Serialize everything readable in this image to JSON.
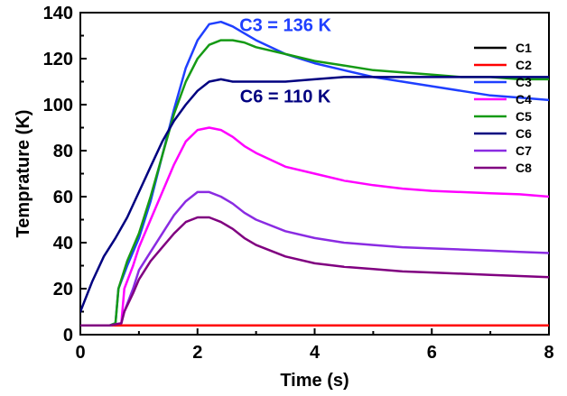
{
  "chart_data": {
    "type": "line",
    "title": "",
    "xlabel": "Time (s)",
    "ylabel": "Temprature (K)",
    "xlim": [
      0,
      8
    ],
    "ylim": [
      0,
      140
    ],
    "xticks": [
      "0",
      "2",
      "4",
      "6",
      "8"
    ],
    "yticks": [
      "0",
      "20",
      "40",
      "60",
      "80",
      "100",
      "120",
      "140"
    ],
    "grid": false,
    "legend_position": "right",
    "series": [
      {
        "name": "C1",
        "color": "#000000",
        "x": [
          0,
          0.5,
          1,
          2,
          3,
          4,
          5,
          6,
          7,
          8
        ],
        "y": [
          4,
          4,
          4,
          4,
          4,
          4,
          4,
          4,
          4,
          4
        ]
      },
      {
        "name": "C2",
        "color": "#ff0000",
        "x": [
          0,
          0.5,
          1,
          2,
          3,
          4,
          5,
          6,
          7,
          8
        ],
        "y": [
          4,
          4,
          4,
          4,
          4,
          4,
          4,
          4,
          4,
          4
        ]
      },
      {
        "name": "C3",
        "color": "#1f3fff",
        "x": [
          0,
          0.5,
          0.6,
          0.65,
          0.8,
          1.0,
          1.2,
          1.4,
          1.6,
          1.8,
          2.0,
          2.2,
          2.4,
          2.6,
          2.8,
          3.0,
          3.5,
          4.0,
          4.5,
          5.0,
          5.5,
          6.0,
          6.5,
          7.0,
          7.5,
          8.0
        ],
        "y": [
          4,
          4,
          5,
          20,
          30,
          42,
          58,
          78,
          98,
          116,
          128,
          135,
          136,
          134,
          131,
          128,
          122,
          118,
          115,
          112,
          110,
          108,
          106,
          104,
          103,
          102
        ]
      },
      {
        "name": "C4",
        "color": "#ff00ff",
        "x": [
          0,
          0.5,
          0.7,
          0.75,
          0.9,
          1.0,
          1.2,
          1.4,
          1.6,
          1.8,
          2.0,
          2.2,
          2.4,
          2.6,
          2.8,
          3.0,
          3.5,
          4.0,
          4.5,
          5.0,
          5.5,
          6.0,
          6.5,
          7.0,
          7.5,
          8.0
        ],
        "y": [
          4,
          4,
          5,
          20,
          30,
          38,
          50,
          62,
          74,
          84,
          89,
          90,
          89,
          86,
          82,
          79,
          73,
          70,
          67,
          65,
          63.5,
          62.5,
          62,
          61.5,
          61,
          60
        ]
      },
      {
        "name": "C5",
        "color": "#159a15",
        "x": [
          0,
          0.5,
          0.6,
          0.65,
          0.8,
          1.0,
          1.2,
          1.4,
          1.6,
          1.8,
          2.0,
          2.2,
          2.4,
          2.6,
          2.8,
          3.0,
          3.5,
          4.0,
          4.5,
          5.0,
          5.5,
          6.0,
          6.5,
          7.0,
          7.5,
          8.0
        ],
        "y": [
          4,
          4,
          5,
          20,
          32,
          44,
          60,
          78,
          96,
          110,
          120,
          126,
          128,
          128,
          127,
          125,
          122,
          119,
          117,
          115,
          114,
          113,
          112,
          112,
          111,
          111
        ]
      },
      {
        "name": "C6",
        "color": "#000080",
        "x": [
          0,
          0.2,
          0.4,
          0.6,
          0.8,
          1.0,
          1.2,
          1.4,
          1.6,
          1.8,
          2.0,
          2.2,
          2.4,
          2.6,
          2.8,
          3.0,
          3.5,
          4.0,
          4.5,
          5.0,
          5.5,
          6.0,
          6.5,
          7.0,
          7.5,
          8.0
        ],
        "y": [
          10,
          23,
          34,
          42,
          51,
          62,
          73,
          84,
          93,
          100,
          106,
          110,
          111,
          110,
          110,
          110,
          110,
          111,
          112,
          112,
          112,
          112,
          112,
          112,
          112,
          112
        ]
      },
      {
        "name": "C7",
        "color": "#8a2be2",
        "x": [
          0,
          0.5,
          0.7,
          0.75,
          0.9,
          1.0,
          1.2,
          1.4,
          1.6,
          1.8,
          2.0,
          2.2,
          2.4,
          2.6,
          2.8,
          3.0,
          3.5,
          4.0,
          4.5,
          5.0,
          5.5,
          6.0,
          6.5,
          7.0,
          7.5,
          8.0
        ],
        "y": [
          4,
          4,
          5,
          10,
          20,
          28,
          36,
          44,
          52,
          58,
          62,
          62,
          60,
          57,
          53,
          50,
          45,
          42,
          40,
          39,
          38,
          37.5,
          37,
          36.5,
          36,
          35.5
        ]
      },
      {
        "name": "C8",
        "color": "#800080",
        "x": [
          0,
          0.5,
          0.7,
          0.75,
          0.9,
          1.0,
          1.2,
          1.4,
          1.6,
          1.8,
          2.0,
          2.2,
          2.4,
          2.6,
          2.8,
          3.0,
          3.5,
          4.0,
          4.5,
          5.0,
          5.5,
          6.0,
          6.5,
          7.0,
          7.5,
          8.0
        ],
        "y": [
          4,
          4,
          5,
          10,
          18,
          24,
          32,
          38,
          44,
          49,
          51,
          51,
          49,
          46,
          42,
          39,
          34,
          31,
          29.5,
          28.5,
          27.5,
          27,
          26.5,
          26,
          25.5,
          25
        ]
      }
    ],
    "annotations": [
      {
        "text": "C3 = 136 K",
        "color": "#1f3fff",
        "x": 3.5,
        "y": 132
      },
      {
        "text": "C6 = 110 K",
        "color": "#000080",
        "x": 3.5,
        "y": 101
      }
    ]
  }
}
